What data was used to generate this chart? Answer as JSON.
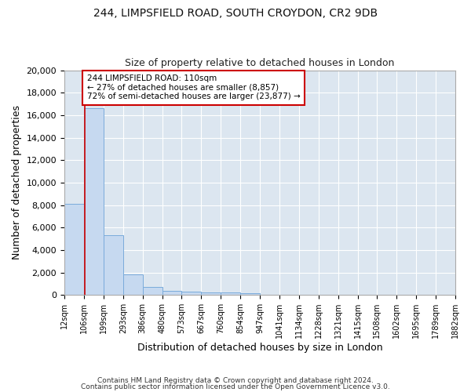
{
  "title1": "244, LIMPSFIELD ROAD, SOUTH CROYDON, CR2 9DB",
  "title2": "Size of property relative to detached houses in London",
  "xlabel": "Distribution of detached houses by size in London",
  "ylabel": "Number of detached properties",
  "bin_edges": [
    12,
    106,
    199,
    293,
    386,
    480,
    573,
    667,
    760,
    854,
    947,
    1041,
    1134,
    1228,
    1321,
    1415,
    1508,
    1602,
    1695,
    1789,
    1882
  ],
  "bar_heights": [
    8100,
    16600,
    5300,
    1850,
    700,
    370,
    280,
    230,
    200,
    150,
    0,
    0,
    0,
    0,
    0,
    0,
    0,
    0,
    0,
    0
  ],
  "bar_color": "#c6d9f0",
  "bar_edge_color": "#7aabdb",
  "property_size": 110,
  "vline_color": "#cc0000",
  "annotation_text": "244 LIMPSFIELD ROAD: 110sqm\n← 27% of detached houses are smaller (8,857)\n72% of semi-detached houses are larger (23,877) →",
  "annotation_box_color": "#ffffff",
  "annotation_box_edge": "#cc0000",
  "ylim": [
    0,
    20000
  ],
  "yticks": [
    0,
    2000,
    4000,
    6000,
    8000,
    10000,
    12000,
    14000,
    16000,
    18000,
    20000
  ],
  "bg_color": "#dce6f0",
  "grid_color": "#ffffff",
  "fig_bg_color": "#ffffff",
  "footer1": "Contains HM Land Registry data © Crown copyright and database right 2024.",
  "footer2": "Contains public sector information licensed under the Open Government Licence v3.0."
}
